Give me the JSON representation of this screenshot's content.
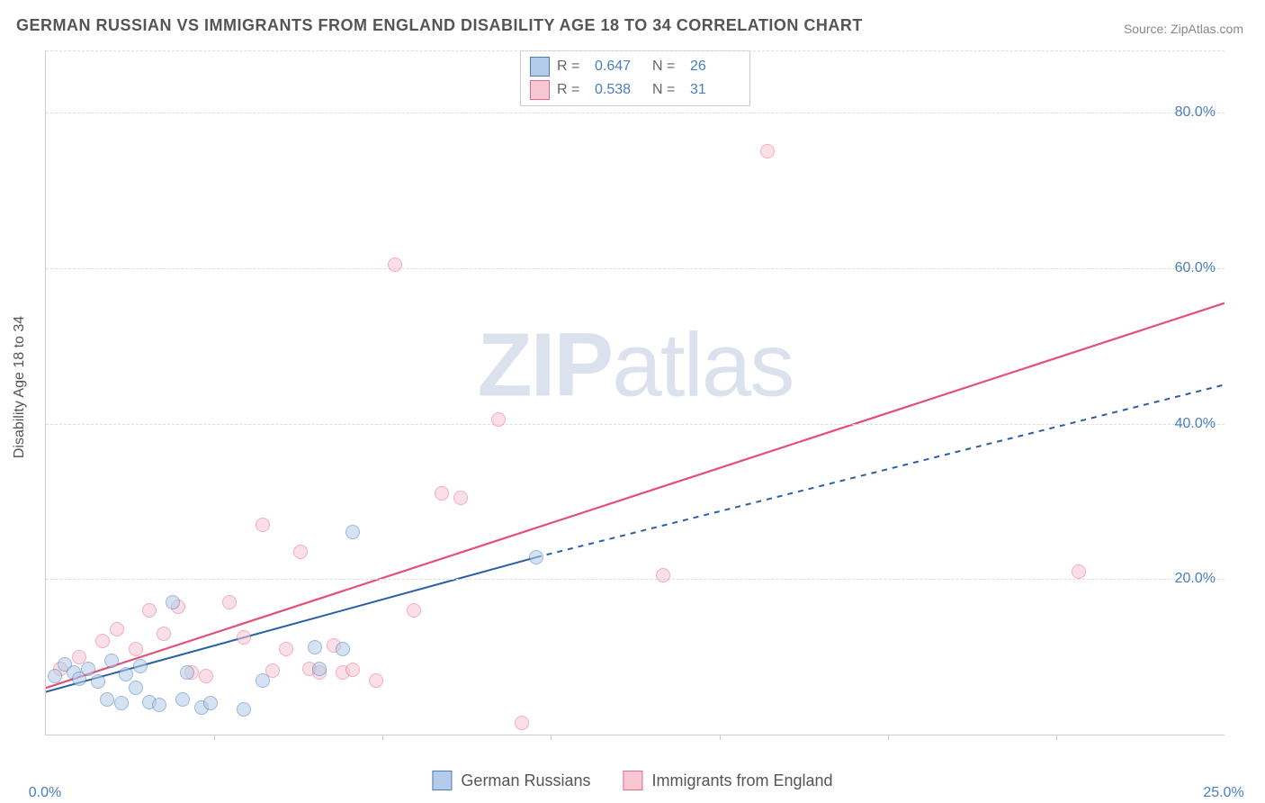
{
  "title": "GERMAN RUSSIAN VS IMMIGRANTS FROM ENGLAND DISABILITY AGE 18 TO 34 CORRELATION CHART",
  "source": "Source: ZipAtlas.com",
  "watermark_bold": "ZIP",
  "watermark_rest": "atlas",
  "ylabel": "Disability Age 18 to 34",
  "chart": {
    "type": "scatter",
    "xlim": [
      0,
      25
    ],
    "ylim": [
      0,
      88
    ],
    "x_ticks": [
      0,
      25
    ],
    "x_tick_labels": [
      "0.0%",
      "25.0%"
    ],
    "x_minor_ticks": [
      3.57,
      7.14,
      10.71,
      14.29,
      17.86,
      21.43
    ],
    "y_ticks": [
      20,
      40,
      60,
      80
    ],
    "y_tick_labels": [
      "20.0%",
      "40.0%",
      "60.0%",
      "80.0%"
    ],
    "background_color": "#ffffff",
    "grid_color": "#dddddd",
    "axis_color": "#cccccc",
    "tick_label_color": "#4a7ebb",
    "axis_label_color": "#555555",
    "title_color": "#555555",
    "marker_radius": 8,
    "marker_opacity": 0.55,
    "marker_border_width": 1.2
  },
  "series": {
    "blue": {
      "name": "German Russians",
      "fill": "#b4cce9",
      "stroke": "#4a7ebb",
      "line_color": "#2b5fa3",
      "R": "0.647",
      "N": "26",
      "trend": {
        "x0": 0,
        "y0": 5.5,
        "x1_solid": 10.4,
        "y1_solid": 22.8,
        "x1": 25,
        "y1": 45,
        "dash_after_solid": true,
        "dash": "6,6",
        "width": 2
      },
      "points": [
        [
          0.2,
          7.5
        ],
        [
          0.4,
          9.0
        ],
        [
          0.6,
          8.0
        ],
        [
          0.7,
          7.2
        ],
        [
          0.9,
          8.5
        ],
        [
          1.1,
          6.8
        ],
        [
          1.3,
          4.5
        ],
        [
          1.4,
          9.5
        ],
        [
          1.6,
          4.0
        ],
        [
          1.7,
          7.8
        ],
        [
          1.9,
          6.0
        ],
        [
          2.0,
          8.8
        ],
        [
          2.2,
          4.2
        ],
        [
          2.4,
          3.8
        ],
        [
          2.7,
          17.0
        ],
        [
          2.9,
          4.5
        ],
        [
          3.0,
          8.0
        ],
        [
          3.3,
          3.5
        ],
        [
          3.5,
          4.0
        ],
        [
          4.2,
          3.3
        ],
        [
          4.6,
          7.0
        ],
        [
          5.7,
          11.2
        ],
        [
          5.8,
          8.5
        ],
        [
          6.3,
          11.0
        ],
        [
          6.5,
          26.0
        ],
        [
          10.4,
          22.8
        ]
      ]
    },
    "pink": {
      "name": "Immigrants from England",
      "fill": "#f7c8d3",
      "stroke": "#e86a8a",
      "line_color": "#e35077",
      "R": "0.538",
      "N": "31",
      "trend": {
        "x0": 0,
        "y0": 6.0,
        "x1": 25,
        "y1": 55.5,
        "dash_after_solid": false,
        "width": 2.2
      },
      "points": [
        [
          0.3,
          8.5
        ],
        [
          0.7,
          10.0
        ],
        [
          1.2,
          12.0
        ],
        [
          1.5,
          13.5
        ],
        [
          1.9,
          11.0
        ],
        [
          2.2,
          16.0
        ],
        [
          2.5,
          13.0
        ],
        [
          2.8,
          16.5
        ],
        [
          3.1,
          8.0
        ],
        [
          3.4,
          7.5
        ],
        [
          3.9,
          17.0
        ],
        [
          4.2,
          12.5
        ],
        [
          4.6,
          27.0
        ],
        [
          4.8,
          8.2
        ],
        [
          5.1,
          11.0
        ],
        [
          5.4,
          23.5
        ],
        [
          5.6,
          8.5
        ],
        [
          5.8,
          8.0
        ],
        [
          6.1,
          11.5
        ],
        [
          6.3,
          8.0
        ],
        [
          6.5,
          8.3
        ],
        [
          7.0,
          7.0
        ],
        [
          7.4,
          60.5
        ],
        [
          7.8,
          16.0
        ],
        [
          8.4,
          31.0
        ],
        [
          8.8,
          30.5
        ],
        [
          9.6,
          40.5
        ],
        [
          10.1,
          1.5
        ],
        [
          13.1,
          20.5
        ],
        [
          15.3,
          75.0
        ],
        [
          21.9,
          21.0
        ]
      ]
    }
  },
  "legend_bottom": [
    {
      "key": "blue"
    },
    {
      "key": "pink"
    }
  ]
}
